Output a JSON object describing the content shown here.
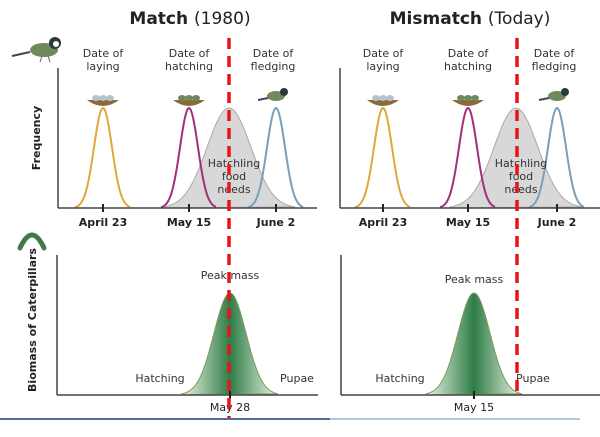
{
  "panels": {
    "match": {
      "title": "Match",
      "year": "(1980)",
      "labels": {
        "laying": [
          "Date of",
          "laying"
        ],
        "hatching": [
          "Date of",
          "hatching"
        ],
        "fledging": [
          "Date of",
          "fledging"
        ]
      },
      "food_needs": [
        "Hatchling",
        "food",
        "needs"
      ],
      "ticks": [
        "April 23",
        "May 15",
        "June 2"
      ],
      "caterpillar": {
        "peak": "Peak mass",
        "start": "Hatching",
        "end": "Pupae",
        "tick": "May 28"
      }
    },
    "mismatch": {
      "title": "Mismatch",
      "year": "(Today)",
      "labels": {
        "laying": [
          "Date of",
          "laying"
        ],
        "hatching": [
          "Date of",
          "hatching"
        ],
        "fledging": [
          "Date of",
          "fledging"
        ]
      },
      "food_needs": [
        "Hatchling",
        "food",
        "needs"
      ],
      "ticks": [
        "April 23",
        "May 15",
        "June 2"
      ],
      "caterpillar": {
        "peak": "Peak mass",
        "start": "Hatching",
        "end": "Pupae",
        "tick": "May 15"
      }
    }
  },
  "axes": {
    "top_ylabel": "Frequency",
    "bottom_ylabel": "Biomass of Caterpillars"
  },
  "colors": {
    "laying": "#e0a83c",
    "hatching": "#a0307a",
    "fledging": "#7aa0b8",
    "food": "#c8c8c8",
    "caterpillar": "#2e7d46",
    "marker": "#e8141c"
  },
  "icons": [
    "bird-icon",
    "nest-eggs-icon",
    "nest-chicks-icon",
    "caterpillar-icon"
  ]
}
